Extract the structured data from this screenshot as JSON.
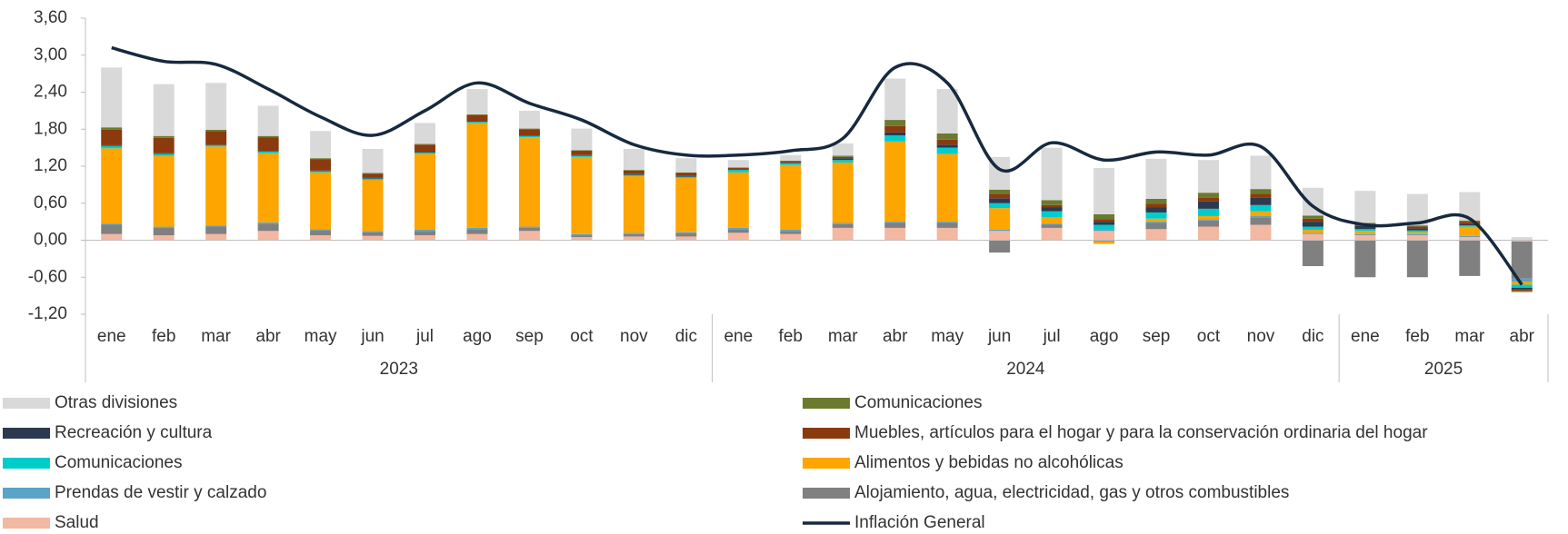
{
  "chart_data": {
    "type": "bar",
    "categories": [
      "ene",
      "feb",
      "mar",
      "abr",
      "may",
      "jun",
      "jul",
      "ago",
      "sep",
      "oct",
      "nov",
      "dic",
      "ene",
      "feb",
      "mar",
      "abr",
      "may",
      "jun",
      "jul",
      "ago",
      "sep",
      "oct",
      "nov",
      "dic",
      "ene",
      "feb",
      "mar",
      "abr"
    ],
    "year_groups": [
      {
        "label": "2023",
        "months": 12
      },
      {
        "label": "2024",
        "months": 12
      },
      {
        "label": "2025",
        "months": 4
      }
    ],
    "ylim": [
      -1.2,
      3.6
    ],
    "yticks": [
      {
        "value": 3.6,
        "label": "3,60"
      },
      {
        "value": 3.0,
        "label": "3,00"
      },
      {
        "value": 2.4,
        "label": "2,40"
      },
      {
        "value": 1.8,
        "label": "1,80"
      },
      {
        "value": 1.2,
        "label": "1,20"
      },
      {
        "value": 0.6,
        "label": "0,60"
      },
      {
        "value": 0,
        "label": "0,00"
      },
      {
        "value": -0.6,
        "label": "-0,60"
      },
      {
        "value": -1.2,
        "label": "-1,20"
      }
    ],
    "grid": false,
    "series": [
      {
        "name": "Salud",
        "color": "#f2b8a2",
        "values": [
          0.1,
          0.08,
          0.1,
          0.15,
          0.08,
          0.07,
          0.08,
          0.1,
          0.15,
          0.05,
          0.06,
          0.06,
          0.12,
          0.1,
          0.2,
          0.2,
          0.2,
          0.15,
          0.2,
          0.15,
          0.18,
          0.22,
          0.25,
          0.1,
          0.08,
          0.08,
          0.05,
          -0.02
        ]
      },
      {
        "name": "Alojamiento, agua, electricidad, gas y otros combustibles",
        "color": "#808080",
        "values": [
          0.15,
          0.12,
          0.12,
          0.12,
          0.08,
          0.06,
          0.07,
          0.08,
          0.05,
          0.03,
          0.04,
          0.05,
          0.06,
          0.05,
          0.06,
          0.08,
          0.08,
          -0.2,
          0.05,
          -0.02,
          0.1,
          0.1,
          0.12,
          -0.42,
          -0.6,
          -0.6,
          -0.58,
          -0.6
        ]
      },
      {
        "name": "Prendas de vestir y calzado",
        "color": "#5ba3c7",
        "values": [
          0.02,
          0.02,
          0.02,
          0.02,
          0.02,
          0.02,
          0.02,
          0.02,
          0.02,
          0.02,
          0.02,
          0.02,
          0.02,
          0.02,
          0.02,
          0.02,
          0.02,
          0.02,
          0.02,
          0.02,
          0.02,
          0.02,
          0.02,
          0.02,
          0.02,
          0.02,
          0.02,
          -0.05
        ]
      },
      {
        "name": "Alimentos y bebidas no alcohólicas",
        "color": "#ffa500",
        "values": [
          1.22,
          1.15,
          1.28,
          1.12,
          0.92,
          0.83,
          1.23,
          1.7,
          1.45,
          1.25,
          0.92,
          0.88,
          0.9,
          1.05,
          0.98,
          1.3,
          1.1,
          0.35,
          0.1,
          -0.04,
          0.05,
          0.05,
          0.08,
          0.05,
          0.05,
          0.03,
          0.15,
          -0.05
        ]
      },
      {
        "name": "Comunicaciones",
        "color": "#00cccc",
        "values": [
          0.04,
          0.03,
          0.02,
          0.03,
          0.02,
          0.02,
          0.02,
          0.02,
          0.02,
          0.02,
          0.02,
          0.02,
          0.04,
          0.03,
          0.04,
          0.1,
          0.1,
          0.08,
          0.1,
          0.08,
          0.1,
          0.12,
          0.1,
          0.05,
          0.03,
          0.03,
          0.02,
          -0.05
        ]
      },
      {
        "name": "Recreación y cultura",
        "color": "#2b3a4f",
        "values": [
          0.01,
          0.01,
          0.01,
          0.01,
          0.01,
          0.01,
          0.01,
          0.01,
          0.01,
          0.01,
          0.01,
          0.01,
          0.01,
          0.01,
          0.03,
          0.05,
          0.05,
          0.08,
          0.06,
          0.05,
          0.08,
          0.12,
          0.12,
          0.08,
          0.05,
          0.03,
          0.03,
          -0.03
        ]
      },
      {
        "name": "Muebles, artículos para el hogar y para la conservación ordinaria del hogar",
        "color": "#8b3a0e",
        "values": [
          0.25,
          0.25,
          0.22,
          0.22,
          0.18,
          0.07,
          0.12,
          0.1,
          0.1,
          0.07,
          0.06,
          0.05,
          0.02,
          0.02,
          0.02,
          0.1,
          0.08,
          0.07,
          0.04,
          0.04,
          0.06,
          0.06,
          0.06,
          0.05,
          0.03,
          0.03,
          0.03,
          -0.02
        ]
      },
      {
        "name": "Comunicaciones",
        "color": "#6b7a2e",
        "values": [
          0.04,
          0.03,
          0.02,
          0.02,
          0.02,
          0.01,
          0.01,
          0.01,
          0.01,
          0.01,
          0.01,
          0.01,
          0.01,
          0.01,
          0.02,
          0.1,
          0.1,
          0.07,
          0.08,
          0.08,
          0.08,
          0.08,
          0.08,
          0.05,
          0.02,
          0.02,
          0.02,
          -0.02
        ]
      },
      {
        "name": "Otras divisiones",
        "color": "#d9d9d9",
        "values": [
          0.97,
          0.84,
          0.76,
          0.49,
          0.44,
          0.39,
          0.34,
          0.41,
          0.29,
          0.35,
          0.34,
          0.23,
          0.12,
          0.09,
          0.2,
          0.67,
          0.72,
          0.53,
          0.85,
          0.75,
          0.65,
          0.53,
          0.54,
          0.45,
          0.52,
          0.51,
          0.46,
          0.05
        ]
      },
      {
        "name": "Inflación General",
        "color": "#17293f",
        "type": "line",
        "values": [
          3.12,
          2.9,
          2.85,
          2.45,
          2.0,
          1.7,
          2.1,
          2.55,
          2.22,
          1.95,
          1.55,
          1.38,
          1.38,
          1.45,
          1.65,
          2.8,
          2.55,
          1.15,
          1.58,
          1.3,
          1.43,
          1.38,
          1.52,
          0.55,
          0.25,
          0.28,
          0.35,
          -0.72
        ]
      }
    ]
  }
}
